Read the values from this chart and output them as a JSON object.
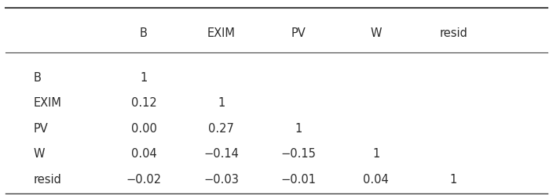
{
  "col_headers": [
    "B",
    "EXIM",
    "PV",
    "W",
    "resid"
  ],
  "row_labels": [
    "B",
    "EXIM",
    "PV",
    "W",
    "resid"
  ],
  "cell_data": [
    [
      "1",
      "",
      "",
      "",
      ""
    ],
    [
      "0.12",
      "1",
      "",
      "",
      ""
    ],
    [
      "0.00",
      "0.27",
      "1",
      "",
      ""
    ],
    [
      "0.04",
      "−0.14",
      "−0.15",
      "1",
      ""
    ],
    [
      "−0.02",
      "−0.03",
      "−0.01",
      "0.04",
      "1"
    ]
  ],
  "background_color": "#ffffff",
  "text_color": "#2a2a2a",
  "line_color": "#444444",
  "fontsize": 10.5,
  "top_bar_color": "#333333",
  "figsize": [
    7.04,
    2.49
  ]
}
